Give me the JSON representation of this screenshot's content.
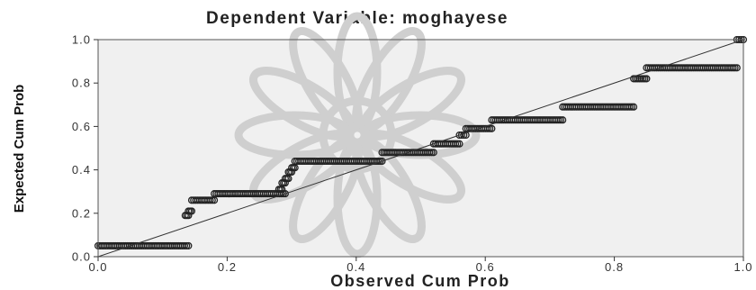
{
  "chart_data": {
    "type": "scatter",
    "title": "Dependent Variable: moghayese",
    "xlabel": "Observed Cum Prob",
    "ylabel": "Expected Cum Prob",
    "xlim": [
      0,
      1
    ],
    "ylim": [
      0,
      1
    ],
    "xticks": [
      "0.0",
      "0.2",
      "0.4",
      "0.6",
      "0.8",
      "1.0"
    ],
    "yticks": [
      "0.0",
      "0.2",
      "0.4",
      "0.6",
      "0.8",
      "1.0"
    ],
    "reference_line": {
      "from": [
        0,
        0
      ],
      "to": [
        1,
        1
      ]
    },
    "grid": false,
    "colors": {
      "plot_background": "#f0f0f0",
      "points": "#222222",
      "reference_line": "#333333",
      "watermark": "#cfcfcf"
    },
    "runs": [
      {
        "y": 0.05,
        "x_start": 0.0,
        "x_end": 0.14
      },
      {
        "y": 0.19,
        "x_start": 0.135,
        "x_end": 0.14
      },
      {
        "y": 0.21,
        "x_start": 0.14,
        "x_end": 0.145
      },
      {
        "y": 0.26,
        "x_start": 0.145,
        "x_end": 0.18
      },
      {
        "y": 0.29,
        "x_start": 0.18,
        "x_end": 0.29
      },
      {
        "y": 0.31,
        "x_start": 0.28,
        "x_end": 0.285
      },
      {
        "y": 0.34,
        "x_start": 0.285,
        "x_end": 0.29
      },
      {
        "y": 0.36,
        "x_start": 0.29,
        "x_end": 0.295
      },
      {
        "y": 0.39,
        "x_start": 0.295,
        "x_end": 0.3
      },
      {
        "y": 0.41,
        "x_start": 0.3,
        "x_end": 0.305
      },
      {
        "y": 0.44,
        "x_start": 0.305,
        "x_end": 0.44
      },
      {
        "y": 0.48,
        "x_start": 0.44,
        "x_end": 0.52
      },
      {
        "y": 0.52,
        "x_start": 0.52,
        "x_end": 0.56
      },
      {
        "y": 0.56,
        "x_start": 0.56,
        "x_end": 0.57
      },
      {
        "y": 0.59,
        "x_start": 0.57,
        "x_end": 0.61
      },
      {
        "y": 0.63,
        "x_start": 0.61,
        "x_end": 0.72
      },
      {
        "y": 0.69,
        "x_start": 0.72,
        "x_end": 0.83
      },
      {
        "y": 0.82,
        "x_start": 0.83,
        "x_end": 0.85
      },
      {
        "y": 0.87,
        "x_start": 0.85,
        "x_end": 0.99
      },
      {
        "y": 1.0,
        "x_start": 0.99,
        "x_end": 1.0
      }
    ]
  }
}
